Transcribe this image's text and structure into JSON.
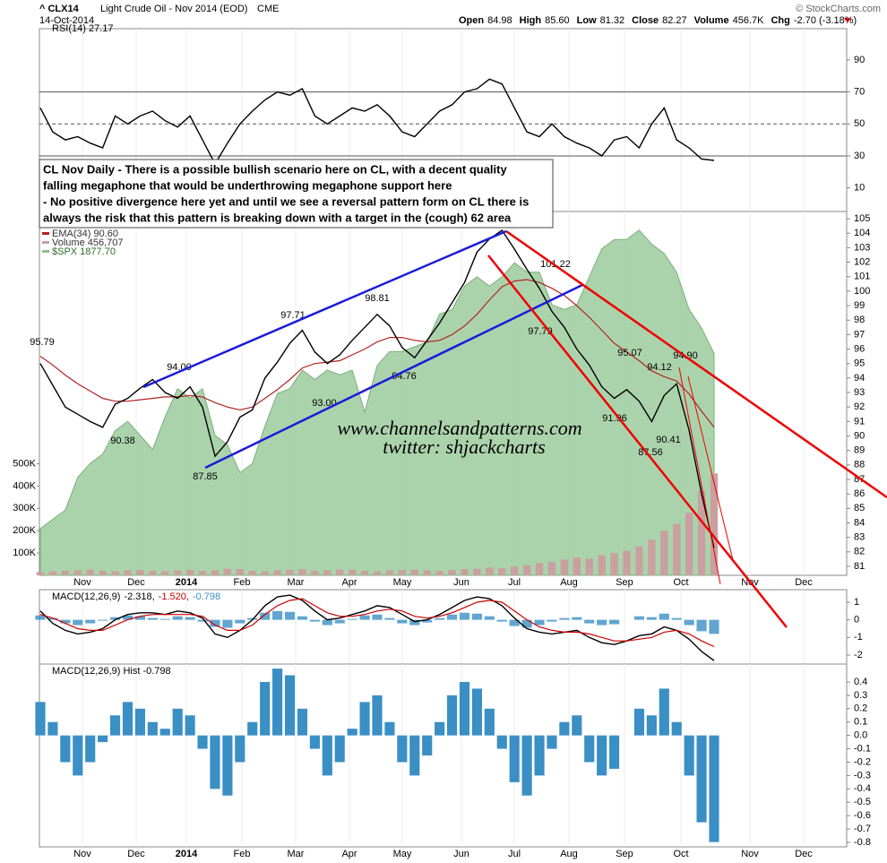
{
  "header": {
    "symbol": "^ CLX14",
    "description": "Light Crude Oil - Nov 2014 (EOD)",
    "exchange": "CME",
    "date": "14-Oct-2014",
    "credit": "© StockCharts.com",
    "quote": [
      {
        "label": "Open",
        "value": "84.98"
      },
      {
        "label": "High",
        "value": "85.60"
      },
      {
        "label": "Low",
        "value": "81.32"
      },
      {
        "label": "Close",
        "value": "82.27"
      },
      {
        "label": "Volume",
        "value": "456.7K"
      },
      {
        "label": "Chg",
        "value": "-2.70 (-3.18%)"
      }
    ]
  },
  "annotation_box": [
    "CL Nov Daily - There is a possible bullish scenario here on CL, with a decent quality",
    "falling megaphone that would be underthrowing megaphone support here",
    "- No positive divergence here yet and until we see a reversal pattern form on CL there is",
    "always the risk that this pattern is breaking down with a target in the (cough) 62 area"
  ],
  "watermark": [
    "www.channelsandpatterns.com",
    "twitter: shjackcharts"
  ],
  "months": [
    "Nov",
    "Dec",
    "2014",
    "Feb",
    "Mar",
    "Apr",
    "May",
    "Jun",
    "Jul",
    "Aug",
    "Sep",
    "Oct",
    "Nov",
    "Dec"
  ],
  "chart_data": [
    {
      "type": "line",
      "title": "RSI(14) 27.17",
      "ylim": [
        -4.8,
        109.6
      ],
      "yticks": [
        10,
        30,
        50,
        70,
        90
      ],
      "reference_lines": [
        {
          "value": 70,
          "dashed": false
        },
        {
          "value": 50,
          "dashed": true
        },
        {
          "value": 30,
          "dashed": false
        }
      ],
      "series": [
        {
          "name": "RSI(14)",
          "color": "#000000",
          "kind": "line",
          "values": [
            60,
            45,
            40,
            42,
            38,
            35,
            55,
            50,
            55,
            58,
            52,
            48,
            55,
            40,
            25,
            38,
            50,
            58,
            65,
            70,
            68,
            72,
            55,
            50,
            55,
            60,
            58,
            62,
            55,
            45,
            42,
            50,
            58,
            62,
            70,
            72,
            78,
            75,
            60,
            45,
            42,
            50,
            42,
            38,
            35,
            30,
            40,
            42,
            35,
            50,
            60,
            40,
            35,
            28,
            27.17
          ]
        }
      ]
    },
    {
      "type": "line",
      "ylim": [
        80.38,
        105.5
      ],
      "yticks": [
        81,
        82,
        83,
        84,
        85,
        86,
        87,
        88,
        89,
        90,
        91,
        92,
        93,
        94,
        95,
        96,
        97,
        98,
        99,
        100,
        101,
        102,
        103,
        104,
        105
      ],
      "y2lim": [
        1640,
        2030
      ],
      "y3lim": [
        0,
        1630000
      ],
      "y3ticks": [
        {
          "value": 100000,
          "label": "100K"
        },
        {
          "value": 200000,
          "label": "200K"
        },
        {
          "value": 300000,
          "label": "300K"
        },
        {
          "value": 400000,
          "label": "400K"
        },
        {
          "value": 500000,
          "label": "500K"
        }
      ],
      "annotations": [
        "95.79",
        "94.00",
        "90.38",
        "87.85",
        "97.71",
        "93.00",
        "98.81",
        "94.76",
        "101.22",
        "97.79",
        "91.96",
        "95.07",
        "94.12",
        "94.90",
        "90.41",
        "87.56"
      ],
      "series": [
        {
          "name": "$SPX 1877.70",
          "color": "#8fc48f",
          "kind": "area",
          "axis": "y2",
          "values": [
            1690,
            1700,
            1710,
            1745,
            1760,
            1770,
            1795,
            1805,
            1790,
            1775,
            1810,
            1840,
            1830,
            1840,
            1790,
            1780,
            1750,
            1760,
            1800,
            1835,
            1840,
            1860,
            1850,
            1860,
            1855,
            1860,
            1815,
            1865,
            1880,
            1880,
            1885,
            1890,
            1920,
            1925,
            1950,
            1960,
            1950,
            1960,
            1975,
            1965,
            1965,
            1930,
            1925,
            1930,
            1960,
            1990,
            2000,
            2000,
            2010,
            1995,
            1985,
            1965,
            1925,
            1905,
            1877.7
          ]
        },
        {
          "name": "Volume 456,707",
          "color": "#c9a0a0",
          "kind": "bar",
          "axis": "y3",
          "values": [
            15000,
            18000,
            20000,
            22000,
            25000,
            20000,
            18000,
            22000,
            24000,
            20000,
            18000,
            22000,
            25000,
            20000,
            22000,
            30000,
            28000,
            20000,
            18000,
            22000,
            25000,
            28000,
            20000,
            22000,
            26000,
            24000,
            20000,
            18000,
            22000,
            24000,
            26000,
            22000,
            20000,
            24000,
            28000,
            30000,
            35000,
            32000,
            40000,
            45000,
            55000,
            60000,
            70000,
            80000,
            75000,
            90000,
            100000,
            110000,
            130000,
            160000,
            200000,
            230000,
            280000,
            380000,
            456707
          ]
        },
        {
          "name": "EMA(34) 90.60",
          "color": "#b22222",
          "kind": "line",
          "values": [
            95.5,
            94.9,
            94.2,
            93.6,
            93.1,
            92.6,
            92.4,
            92.4,
            92.5,
            92.6,
            92.7,
            92.7,
            92.8,
            92.7,
            92.3,
            92.0,
            91.8,
            92.0,
            92.6,
            93.2,
            93.9,
            94.7,
            95.0,
            95.1,
            95.2,
            95.6,
            96.0,
            96.5,
            96.8,
            96.8,
            96.6,
            96.5,
            96.6,
            97.0,
            97.6,
            98.4,
            99.4,
            100.3,
            100.7,
            100.8,
            100.6,
            100.2,
            99.7,
            99.0,
            98.2,
            97.3,
            96.4,
            95.8,
            95.2,
            94.5,
            94.1,
            93.8,
            92.9,
            91.7,
            90.6
          ]
        },
        {
          "name": "CLX14",
          "color": "#000000",
          "kind": "line",
          "values": [
            95.0,
            93.5,
            92.0,
            91.5,
            91.0,
            90.6,
            92.2,
            92.6,
            93.3,
            93.9,
            93.0,
            92.6,
            93.4,
            92.0,
            88.6,
            89.6,
            91.3,
            91.8,
            94.0,
            95.1,
            96.4,
            97.3,
            95.8,
            95.0,
            95.6,
            96.6,
            97.5,
            98.4,
            97.6,
            96.1,
            95.4,
            96.6,
            97.8,
            99.2,
            100.6,
            102.7,
            103.6,
            104.2,
            102.9,
            101.5,
            100.2,
            98.6,
            97.5,
            96.0,
            94.9,
            93.4,
            92.6,
            93.2,
            92.4,
            91.0,
            92.8,
            93.6,
            90.4,
            86.0,
            82.27
          ]
        }
      ]
    },
    {
      "type": "line",
      "title_parts": [
        "MACD(12,26,9)",
        "-2.318,",
        "-1.520,",
        "-0.798"
      ],
      "ylim": [
        -2.51,
        1.71
      ],
      "yticks": [
        1,
        0,
        -1,
        -2
      ],
      "series": [
        {
          "name": "MACD",
          "color": "#000000",
          "kind": "line",
          "values": [
            0.5,
            -0.2,
            -0.6,
            -0.8,
            -0.7,
            -0.5,
            0.0,
            0.3,
            0.4,
            0.4,
            0.3,
            0.5,
            0.4,
            0.1,
            -0.8,
            -1.0,
            -0.6,
            0.0,
            0.8,
            1.3,
            1.4,
            1.1,
            0.5,
            0.0,
            0.1,
            0.3,
            0.5,
            0.8,
            0.7,
            0.3,
            -0.1,
            0.0,
            0.3,
            0.7,
            1.1,
            1.3,
            1.2,
            0.8,
            0.1,
            -0.5,
            -0.7,
            -0.8,
            -0.7,
            -0.6,
            -1.0,
            -1.3,
            -1.4,
            -1.2,
            -0.9,
            -0.8,
            -0.4,
            -0.6,
            -1.1,
            -1.8,
            -2.318
          ]
        },
        {
          "name": "Signal",
          "color": "#cc0000",
          "kind": "line",
          "values": [
            0.3,
            0.1,
            -0.2,
            -0.5,
            -0.6,
            -0.6,
            -0.3,
            0.0,
            0.2,
            0.3,
            0.3,
            0.3,
            0.3,
            0.2,
            -0.3,
            -0.6,
            -0.6,
            -0.3,
            0.3,
            0.8,
            1.1,
            1.2,
            0.8,
            0.4,
            0.2,
            0.2,
            0.3,
            0.5,
            0.6,
            0.5,
            0.2,
            0.1,
            0.2,
            0.4,
            0.7,
            1.0,
            1.1,
            1.0,
            0.5,
            0.0,
            -0.4,
            -0.6,
            -0.7,
            -0.7,
            -0.8,
            -1.0,
            -1.2,
            -1.2,
            -1.1,
            -1.0,
            -0.7,
            -0.6,
            -0.8,
            -1.2,
            -1.52
          ]
        }
      ]
    },
    {
      "type": "bar",
      "title": "MACD(12,26,9) Hist -0.798",
      "color": "#3a8fc4",
      "ylim": [
        -0.834,
        0.534
      ],
      "yticks": [
        0.4,
        0.3,
        0.2,
        0.1,
        {
          "value": 0,
          "label": "0.0"
        },
        -0.1,
        -0.2,
        -0.3,
        -0.4,
        -0.5,
        -0.6,
        -0.7,
        -0.8
      ],
      "values": [
        0.25,
        0.1,
        -0.2,
        -0.3,
        -0.2,
        -0.05,
        0.15,
        0.25,
        0.2,
        0.1,
        0.05,
        0.2,
        0.15,
        -0.1,
        -0.4,
        -0.45,
        -0.2,
        0.1,
        0.4,
        0.5,
        0.45,
        0.2,
        -0.1,
        -0.3,
        -0.2,
        0.05,
        0.25,
        0.3,
        0.1,
        -0.2,
        -0.3,
        -0.15,
        0.1,
        0.3,
        0.4,
        0.35,
        0.2,
        -0.1,
        -0.35,
        -0.45,
        -0.3,
        -0.1,
        0.1,
        0.15,
        -0.2,
        -0.3,
        -0.25,
        0.0,
        0.2,
        0.15,
        0.35,
        0.1,
        -0.3,
        -0.65,
        -0.798
      ]
    }
  ]
}
